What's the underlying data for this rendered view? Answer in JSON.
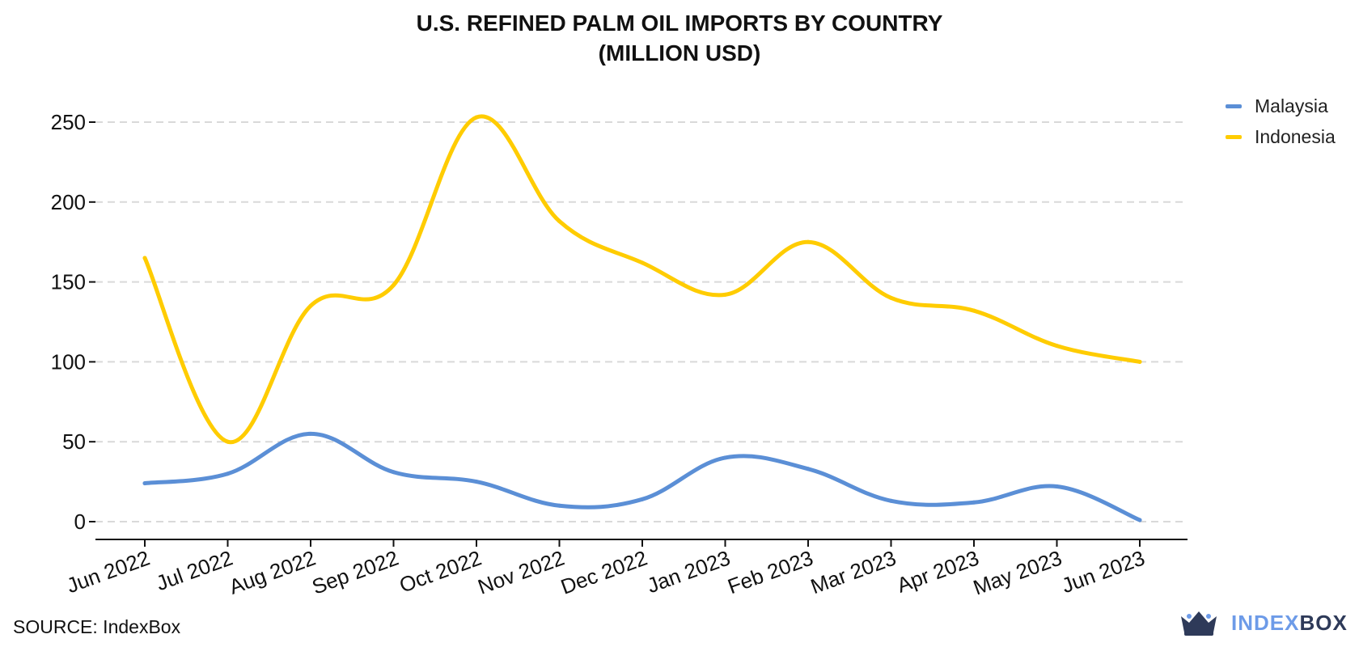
{
  "title_line1": "U.S. REFINED PALM OIL IMPORTS BY COUNTRY",
  "title_line2": "(MILLION USD)",
  "source": "SOURCE: IndexBox",
  "logo": {
    "part1": "INDEX",
    "part2": "BOX",
    "icon": "crown-box-icon"
  },
  "colors": {
    "malaysia": "#5b8fd6",
    "indonesia": "#ffcc00",
    "grid": "#d9d9d9",
    "axis": "#111111"
  },
  "chart_data": {
    "type": "line",
    "title": "U.S. REFINED PALM OIL IMPORTS BY COUNTRY (MILLION USD)",
    "categories": [
      "Jun 2022",
      "Jul 2022",
      "Aug 2022",
      "Sep 2022",
      "Oct 2022",
      "Nov 2022",
      "Dec 2022",
      "Jan 2023",
      "Feb 2023",
      "Mar 2023",
      "Apr 2023",
      "May 2023",
      "Jun 2023"
    ],
    "ylim": [
      0,
      250
    ],
    "yticks": [
      0,
      50,
      100,
      150,
      200,
      250
    ],
    "grid": true,
    "legend_position": "top-right",
    "series": [
      {
        "name": "Malaysia",
        "values": [
          24,
          30,
          55,
          31,
          25,
          10,
          14,
          40,
          33,
          13,
          12,
          22,
          1
        ]
      },
      {
        "name": "Indonesia",
        "values": [
          165,
          50,
          135,
          148,
          253,
          188,
          162,
          142,
          175,
          140,
          132,
          110,
          100
        ]
      }
    ]
  }
}
